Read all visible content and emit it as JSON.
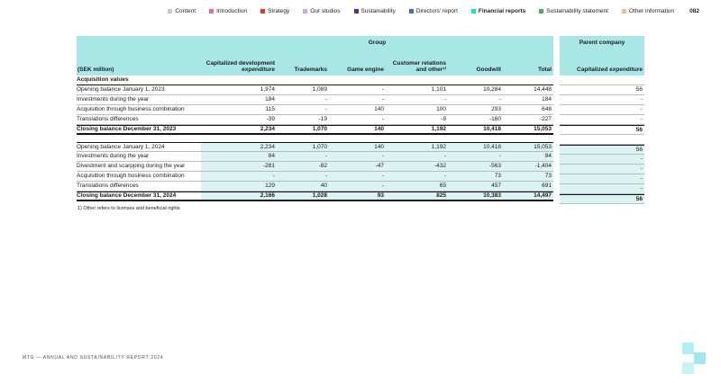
{
  "colors": {
    "header_bg": "#a9e6e6",
    "highlight_bg": "#dcf3f3",
    "line_dark": "#141414",
    "line_gray": "#bcbcbc"
  },
  "nav": {
    "items": [
      {
        "label": "Content",
        "color": "#c9c9c9"
      },
      {
        "label": "Introduction",
        "color": "#ee6a9d"
      },
      {
        "label": "Strategy",
        "color": "#e8322a"
      },
      {
        "label": "Our studios",
        "color": "#d9a3e8"
      },
      {
        "label": "Sustainability",
        "color": "#5c2e91"
      },
      {
        "label": "Directors' report",
        "color": "#4b66cc"
      },
      {
        "label": "Financial reports",
        "color": "#19e0cf"
      },
      {
        "label": "Sustainability statement",
        "color": "#3eb54f"
      },
      {
        "label": "Other information",
        "color": "#f8bc8c"
      }
    ],
    "page_number": "082"
  },
  "table": {
    "group_label": "Group",
    "unit_label": "(SEK million)",
    "columns": [
      "Capitalized development expenditure",
      "Trademarks",
      "Game engine",
      "Customer relations and other¹⁾",
      "Goodwill",
      "Total"
    ],
    "parent": {
      "title": "Parent company",
      "column": "Capitalized expenditure"
    },
    "section_label": "Acquisition values",
    "rows": [
      {
        "label": "Opening balance January 1, 2023",
        "values": [
          "1,974",
          "1,089",
          "-",
          "1,101",
          "10,284",
          "14,448"
        ],
        "parent": "56"
      },
      {
        "label": "Investments during the year",
        "values": [
          "184",
          "-",
          "-",
          "-",
          "-",
          "184"
        ],
        "parent": "-"
      },
      {
        "label": "Acquisition through business combination",
        "values": [
          "115",
          "-",
          "140",
          "100",
          "293",
          "648"
        ],
        "parent": "-"
      },
      {
        "label": "Translations differences",
        "values": [
          "-39",
          "-19",
          "-",
          "-9",
          "-160",
          "-227"
        ],
        "parent": "-"
      },
      {
        "label": "Closing balance December 31, 2023",
        "values": [
          "2,234",
          "1,070",
          "140",
          "1,192",
          "10,418",
          "15,053"
        ],
        "parent": "56"
      },
      {
        "label": "Opening balance January 1, 2024",
        "values": [
          "2,234",
          "1,070",
          "140",
          "1,192",
          "10,418",
          "15,053"
        ],
        "parent": "56"
      },
      {
        "label": "Investments during the year",
        "values": [
          "84",
          "-",
          "-",
          "-",
          "-",
          "84"
        ],
        "parent": "-"
      },
      {
        "label": "Divestment and scarpping during the year",
        "values": [
          "-281",
          "-82",
          "-47",
          "-432",
          "-563",
          "-1,404"
        ],
        "parent": "-"
      },
      {
        "label": "Acquisition through business combination",
        "values": [
          "-",
          "-",
          "-",
          "-",
          "73",
          "73"
        ],
        "parent": "-"
      },
      {
        "label": "Translations differences",
        "values": [
          "129",
          "40",
          "-",
          "65",
          "457",
          "691"
        ],
        "parent": "-"
      },
      {
        "label": "Closing balance December 31, 2024",
        "values": [
          "2,166",
          "1,028",
          "93",
          "825",
          "10,383",
          "14,497"
        ],
        "parent": "56"
      }
    ]
  },
  "footnote": "1) Other refers to licenses and beneficial rights",
  "footer": "MTG — ANNUAL AND SUSTAINABILITY REPORT 2024"
}
